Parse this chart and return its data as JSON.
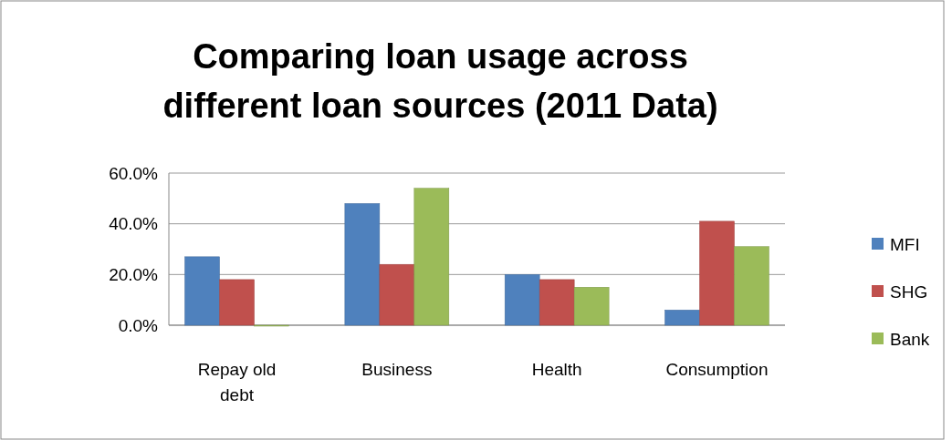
{
  "chart_data": {
    "type": "bar",
    "title": "Comparing loan usage across different loan sources (2011 Data)",
    "categories": [
      "Repay old debt",
      "Business",
      "Health",
      "Consumption"
    ],
    "series": [
      {
        "name": "MFI",
        "color": "#4f81bd",
        "values": [
          27,
          48,
          20,
          6
        ]
      },
      {
        "name": "SHG",
        "color": "#c0504d",
        "values": [
          18,
          24,
          18,
          41
        ]
      },
      {
        "name": "Bank",
        "color": "#9bbb59",
        "values": [
          0,
          54,
          15,
          31
        ]
      }
    ],
    "ylim": [
      0,
      60
    ],
    "yticks": [
      {
        "value": 0,
        "label": "0.0%"
      },
      {
        "value": 20,
        "label": "20.0%"
      },
      {
        "value": 40,
        "label": "40.0%"
      },
      {
        "value": 60,
        "label": "60.0%"
      }
    ],
    "grid": "y",
    "legend": "right"
  }
}
